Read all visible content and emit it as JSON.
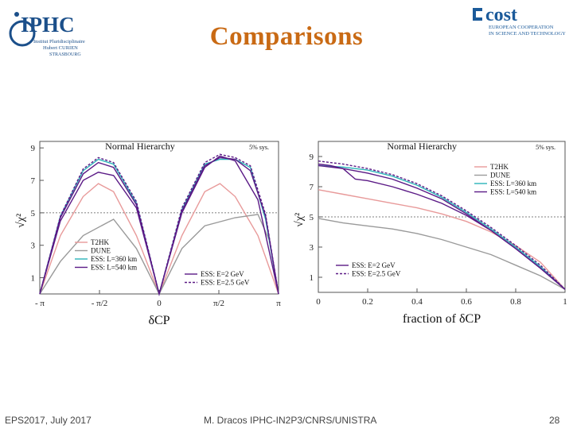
{
  "slide": {
    "title": "Comparisons",
    "footer_left": "EPS2017, July 2017",
    "footer_center": "M. Dracos IPHC-IN2P3/CNRS/UNISTRA",
    "page_number": "28"
  },
  "logos": {
    "iphc": {
      "name": "IPHC",
      "lines": [
        "Institut Pluridisciplinaire",
        "Hubert CURIEN",
        "STRASBOURG"
      ]
    },
    "cost": {
      "name": "cost",
      "lines": [
        "EUROPEAN COOPERATION",
        "IN SCIENCE AND TECHNOLOGY"
      ]
    }
  },
  "colors": {
    "title": "#c96a14",
    "t2hk": "#e89a9a",
    "dune": "#9a9a9a",
    "ess360": "#2ab3b8",
    "ess540": "#5b1a86",
    "ess2gev": "#5b1a86",
    "ess25gev": "#5b1a86"
  },
  "chart_data": [
    {
      "type": "line",
      "title": "Normal Hierarchy",
      "annotation": "5% sys.",
      "xlabel": "δCP",
      "ylabel": "√χ²",
      "xlim": [
        -3.1416,
        3.1416
      ],
      "ylim": [
        0,
        9.4
      ],
      "xticks": [
        -3.1416,
        -1.5708,
        0,
        1.5708,
        3.1416
      ],
      "xtick_labels": [
        "- π",
        "- π/2",
        "0",
        "π/2",
        "π"
      ],
      "yticks": [
        1,
        3,
        5,
        7,
        9
      ],
      "ytick_labels": [
        "1",
        "3",
        "5",
        "7",
        "9"
      ],
      "reference_line_y": 5,
      "series": [
        {
          "name": "T2HK",
          "key": "t2hk",
          "dash": "",
          "x": [
            -3.1416,
            -2.6,
            -2.0,
            -1.6,
            -1.2,
            -0.6,
            0,
            0.6,
            1.2,
            1.6,
            2.0,
            2.6,
            3.1416
          ],
          "y": [
            0,
            3.6,
            6.0,
            6.8,
            6.3,
            3.6,
            0,
            3.6,
            6.3,
            6.8,
            6.0,
            3.6,
            0
          ]
        },
        {
          "name": "DUNE",
          "key": "dune",
          "dash": "",
          "x": [
            -3.1416,
            -2.6,
            -2.0,
            -1.2,
            -0.6,
            0,
            0.6,
            1.2,
            2.0,
            2.6,
            2.9,
            3.1416
          ],
          "y": [
            0,
            2.0,
            3.6,
            4.6,
            2.8,
            0,
            2.8,
            4.2,
            4.7,
            4.9,
            3.3,
            0
          ]
        },
        {
          "name": "ESS: L=360 km",
          "key": "ess360",
          "dash": "",
          "x": [
            -3.1416,
            -2.6,
            -2.0,
            -1.6,
            -1.2,
            -0.6,
            0,
            0.6,
            1.2,
            1.6,
            2.0,
            2.4,
            2.8,
            3.1416
          ],
          "y": [
            0,
            4.8,
            7.6,
            8.3,
            8.0,
            5.6,
            0,
            5.2,
            8.0,
            8.3,
            8.3,
            7.8,
            4.6,
            0
          ]
        },
        {
          "name": "ESS: L=540 km",
          "key": "ess540",
          "dash": "",
          "x": [
            -3.1416,
            -2.6,
            -2.0,
            -1.6,
            -1.2,
            -0.6,
            0,
            0.6,
            1.2,
            1.6,
            2.0,
            2.6,
            3.1416
          ],
          "y": [
            0,
            4.5,
            7.0,
            7.5,
            7.3,
            5.3,
            0,
            5.0,
            7.8,
            8.5,
            8.2,
            5.8,
            0
          ]
        },
        {
          "name": "ESS: E=2 GeV",
          "key": "ess2gev",
          "dash": "",
          "x": [
            -3.1416,
            -2.6,
            -2.0,
            -1.6,
            -1.2,
            -0.6,
            0,
            0.6,
            1.2,
            1.6,
            2.0,
            2.4,
            2.8,
            3.1416
          ],
          "y": [
            0,
            4.7,
            7.4,
            8.1,
            7.8,
            5.5,
            0,
            5.1,
            7.9,
            8.4,
            8.3,
            7.6,
            4.8,
            0
          ]
        },
        {
          "name": "ESS: E=2.5 GeV",
          "key": "ess25gev",
          "dash": "3,2",
          "x": [
            -3.1416,
            -2.6,
            -2.0,
            -1.6,
            -1.2,
            -0.6,
            0,
            0.6,
            1.2,
            1.6,
            2.0,
            2.4,
            2.8,
            3.1416
          ],
          "y": [
            0,
            4.8,
            7.7,
            8.4,
            8.1,
            5.7,
            0,
            5.3,
            8.1,
            8.6,
            8.4,
            7.9,
            4.9,
            0
          ]
        }
      ],
      "legends": [
        {
          "placement": "bottom-left",
          "items": [
            "T2HK",
            "DUNE",
            "ESS: L=360 km",
            "ESS: L=540 km"
          ]
        },
        {
          "placement": "bottom-right",
          "items": [
            "ESS: E=2 GeV",
            "ESS: E=2.5 GeV"
          ]
        }
      ]
    },
    {
      "type": "line",
      "title": "Normal Hierarchy",
      "annotation": "5% sys.",
      "xlabel": "fraction of δCP",
      "ylabel": "√χ²",
      "xlim": [
        0,
        1
      ],
      "ylim": [
        0,
        10
      ],
      "xticks": [
        0,
        0.2,
        0.4,
        0.6,
        0.8,
        1
      ],
      "xtick_labels": [
        "0",
        "0.2",
        "0.4",
        "0.6",
        "0.8",
        "1"
      ],
      "yticks": [
        1,
        3,
        5,
        7,
        9
      ],
      "ytick_labels": [
        "1",
        "3",
        "5",
        "7",
        "9"
      ],
      "reference_line_y": 5,
      "series": [
        {
          "name": "T2HK",
          "key": "t2hk",
          "dash": "",
          "x": [
            0,
            0.1,
            0.2,
            0.3,
            0.4,
            0.5,
            0.6,
            0.7,
            0.8,
            0.9,
            1.0
          ],
          "y": [
            6.8,
            6.5,
            6.2,
            5.9,
            5.6,
            5.2,
            4.7,
            4.0,
            3.1,
            2.0,
            0.2
          ]
        },
        {
          "name": "DUNE",
          "key": "dune",
          "dash": "",
          "x": [
            0,
            0.1,
            0.2,
            0.3,
            0.4,
            0.5,
            0.6,
            0.7,
            0.8,
            0.9,
            1.0
          ],
          "y": [
            4.9,
            4.6,
            4.4,
            4.2,
            3.9,
            3.5,
            3.0,
            2.5,
            1.8,
            1.1,
            0.2
          ]
        },
        {
          "name": "ESS: L=360 km",
          "key": "ess360",
          "dash": "",
          "x": [
            0,
            0.1,
            0.2,
            0.3,
            0.4,
            0.5,
            0.6,
            0.7,
            0.8,
            0.9,
            1.0
          ],
          "y": [
            8.4,
            8.3,
            8.1,
            7.7,
            7.1,
            6.3,
            5.3,
            4.2,
            3.0,
            1.7,
            0.2
          ]
        },
        {
          "name": "ESS: L=540 km",
          "key": "ess540",
          "dash": "",
          "x": [
            0,
            0.05,
            0.1,
            0.15,
            0.2,
            0.3,
            0.4,
            0.5,
            0.6,
            0.7,
            0.8,
            0.9,
            1.0
          ],
          "y": [
            8.5,
            8.4,
            8.2,
            7.5,
            7.4,
            7.0,
            6.5,
            5.9,
            5.1,
            4.1,
            2.9,
            1.6,
            0.2
          ]
        },
        {
          "name": "ESS: E=2 GeV",
          "key": "ess2gev",
          "dash": "",
          "x": [
            0,
            0.1,
            0.2,
            0.3,
            0.4,
            0.5,
            0.6,
            0.7,
            0.8,
            0.9,
            1.0
          ],
          "y": [
            8.4,
            8.2,
            7.9,
            7.5,
            6.9,
            6.2,
            5.2,
            4.1,
            2.9,
            1.6,
            0.2
          ]
        },
        {
          "name": "ESS: E=2.5 GeV",
          "key": "ess25gev",
          "dash": "3,2",
          "x": [
            0,
            0.1,
            0.2,
            0.3,
            0.4,
            0.5,
            0.6,
            0.7,
            0.8,
            0.9,
            1.0
          ],
          "y": [
            8.7,
            8.5,
            8.2,
            7.8,
            7.2,
            6.4,
            5.4,
            4.3,
            3.1,
            1.8,
            0.2
          ]
        }
      ],
      "legends": [
        {
          "placement": "top-right",
          "items": [
            "T2HK",
            "DUNE",
            "ESS: L=360 km",
            "ESS: L=540 km"
          ]
        },
        {
          "placement": "bottom-left",
          "items": [
            "ESS: E=2 GeV",
            "ESS: E=2.5 GeV"
          ]
        }
      ]
    }
  ]
}
